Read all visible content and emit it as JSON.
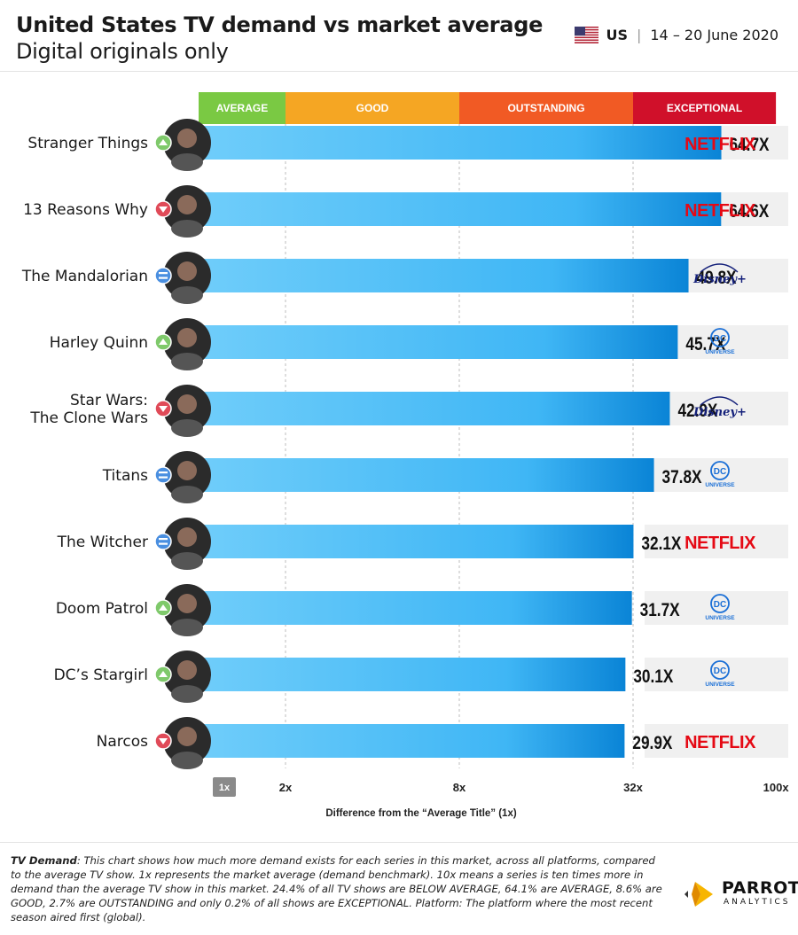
{
  "header": {
    "title": "United States TV demand vs market average",
    "subtitle": "Digital originals only",
    "region_code": "US",
    "region_flag_icon": "us-flag-icon",
    "date_range": "14 – 20 June 2020"
  },
  "chart_data": {
    "type": "bar",
    "orientation": "horizontal",
    "x_scale": "log",
    "xlabel": "Difference from the “Average Title” (1x)",
    "x_ticks": [
      "1x",
      "2x",
      "8x",
      "32x",
      "100x"
    ],
    "x_tick_values": [
      1,
      2,
      8,
      32,
      100
    ],
    "xlim": [
      1,
      100
    ],
    "bands": [
      {
        "label": "AVERAGE",
        "from": 1,
        "to": 2,
        "color": "#7ac943"
      },
      {
        "label": "GOOD",
        "from": 2,
        "to": 8,
        "color": "#f5a623"
      },
      {
        "label": "OUTSTANDING",
        "from": 8,
        "to": 32,
        "color": "#f15a24"
      },
      {
        "label": "EXCEPTIONAL",
        "from": 32,
        "to": 100,
        "color": "#d0102a"
      }
    ],
    "rows": [
      {
        "title": "Stranger Things",
        "value": 64.7,
        "label": "64.7X",
        "trend": "up",
        "platform": "netflix"
      },
      {
        "title": "13 Reasons Why",
        "value": 64.6,
        "label": "64.6X",
        "trend": "down",
        "platform": "netflix"
      },
      {
        "title": "The Mandalorian",
        "value": 49.8,
        "label": "49.8X",
        "trend": "same",
        "platform": "disney"
      },
      {
        "title": "Harley Quinn",
        "value": 45.7,
        "label": "45.7X",
        "trend": "up",
        "platform": "dc"
      },
      {
        "title": "Star Wars: The Clone Wars",
        "value": 42.9,
        "label": "42.9X",
        "trend": "down",
        "platform": "disney"
      },
      {
        "title": "Titans",
        "value": 37.8,
        "label": "37.8X",
        "trend": "same",
        "platform": "dc"
      },
      {
        "title": "The Witcher",
        "value": 32.1,
        "label": "32.1X",
        "trend": "same",
        "platform": "netflix"
      },
      {
        "title": "Doom Patrol",
        "value": 31.7,
        "label": "31.7X",
        "trend": "up",
        "platform": "dc"
      },
      {
        "title": "DC’s Stargirl",
        "value": 30.1,
        "label": "30.1X",
        "trend": "up",
        "platform": "dc"
      },
      {
        "title": "Narcos",
        "value": 29.9,
        "label": "29.9X",
        "trend": "down",
        "platform": "netflix"
      }
    ],
    "platform_labels": {
      "netflix": [
        "NETFLIX"
      ],
      "disney": [
        "Disney+"
      ],
      "dc": [
        "DC",
        "UNIVERSE"
      ]
    },
    "colors": {
      "bar_light": "#6fcdfa",
      "bar_dark": "#0a84d6",
      "trend_up": "#7fc96b",
      "trend_down": "#e04a58",
      "trend_same": "#4a8fe0",
      "netflix": "#e50914",
      "disney": "#14207a",
      "dc": "#1a6fd6"
    }
  },
  "footer": {
    "note_label": "TV Demand",
    "note_text": ": This chart shows how much more demand exists for each series in this market, across all platforms, compared to the average TV show. 1x represents the market average (demand benchmark). 10x means a series is ten times more in demand than the average TV show in this market. 24.4% of all TV shows are BELOW AVERAGE, 64.1% are AVERAGE, 8.6% are GOOD, 2.7% are OUTSTANDING and only 0.2% of all shows are EXCEPTIONAL. Platform: The platform where the most recent season aired first (global).",
    "brand_name": "PARROT",
    "brand_sub": "ANALYTICS",
    "brand_icon": "parrot-logo-icon"
  }
}
